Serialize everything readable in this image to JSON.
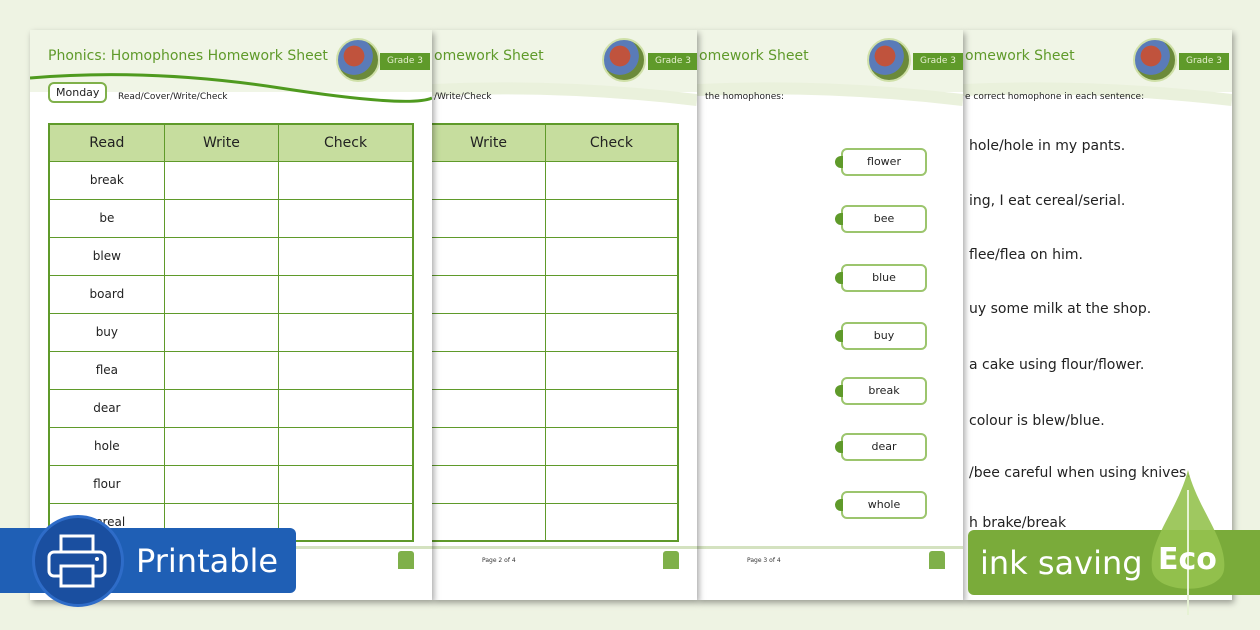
{
  "page1": {
    "title": "Phonics: Homophones Homework Sheet",
    "grade": "Grade 3",
    "day": "Monday",
    "instruction": "Read/Cover/Write/Check",
    "headers": [
      "Read",
      "Write",
      "Check"
    ],
    "words": [
      "break",
      "be",
      "blew",
      "board",
      "buy",
      "flea",
      "dear",
      "hole",
      "flour",
      "cereal"
    ]
  },
  "page2": {
    "title": "omework Sheet",
    "grade": "Grade 3",
    "instruction": "/Write/Check",
    "headers": [
      "Write",
      "Check"
    ],
    "footer": "Page 2 of 4"
  },
  "page3": {
    "title": "omework Sheet",
    "grade": "Grade 3",
    "instruction": "the homophones:",
    "words": [
      "flower",
      "bee",
      "blue",
      "buy",
      "break",
      "dear",
      "whole"
    ],
    "footer": "Page 3 of 4"
  },
  "page4": {
    "title": "omework Sheet",
    "grade": "Grade 3",
    "instruction": "e correct homophone in each sentence:",
    "sentences": [
      "hole/hole in my pants.",
      "ing, I eat cereal/serial.",
      "flee/flea on him.",
      "uy some milk at the shop.",
      "a cake using flour/flower.",
      "colour is blew/blue.",
      "/bee careful when using knives.",
      "h brake/break"
    ]
  },
  "badges": {
    "printable": "Printable",
    "ink": "ink saving",
    "eco": "Eco",
    "printable_color": "#1f5fb5",
    "eco_color": "#7aab3a"
  },
  "icons": [
    "printer-icon",
    "leaf-icon",
    "twinkl-logo-icon"
  ]
}
